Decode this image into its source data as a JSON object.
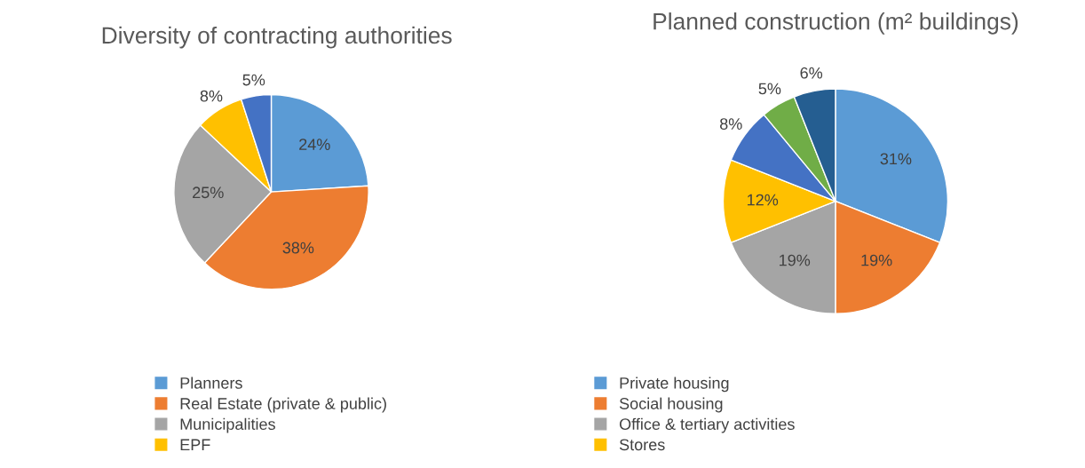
{
  "chart_data": [
    {
      "type": "pie",
      "title": "Diversity of contracting authorities",
      "categories": [
        "Planners",
        "Real Estate (private & public)",
        "Municipalities",
        "EPF",
        null
      ],
      "values": [
        24,
        38,
        25,
        8,
        5
      ],
      "value_labels": [
        "24%",
        "38%",
        "25%",
        "8%",
        "5%"
      ],
      "colors": [
        "#5b9bd5",
        "#ed7d31",
        "#a5a5a5",
        "#ffc000",
        "#4472c4"
      ],
      "legend": "bottom"
    },
    {
      "type": "pie",
      "title": "Planned construction (m² buildings)",
      "categories": [
        "Private housing",
        "Social housing",
        "Office & tertiary activities",
        "Stores",
        null,
        null,
        null
      ],
      "values": [
        31,
        19,
        19,
        12,
        8,
        5,
        6
      ],
      "value_labels": [
        "31%",
        "19%",
        "19%",
        "12%",
        "8%",
        "5%",
        "6%"
      ],
      "colors": [
        "#5b9bd5",
        "#ed7d31",
        "#a5a5a5",
        "#ffc000",
        "#4472c4",
        "#70ad47",
        "#255e91"
      ],
      "legend": "bottom"
    }
  ]
}
